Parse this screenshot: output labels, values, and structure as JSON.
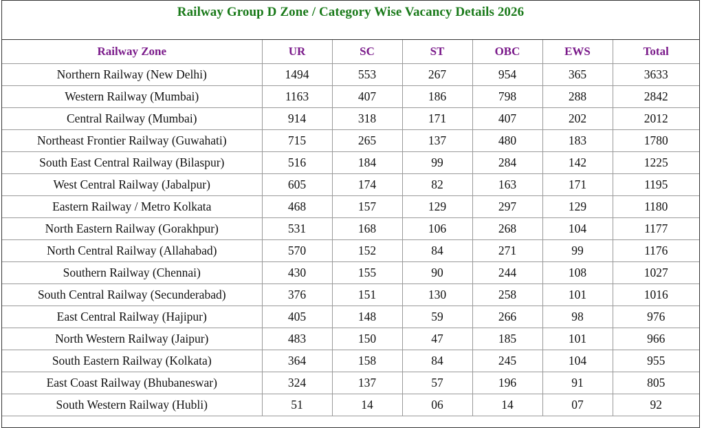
{
  "title": "Railway Group D Zone / Category Wise Vacancy Details 2026",
  "colors": {
    "title": "#1a7a1a",
    "header": "#7a1a8a"
  },
  "headers": [
    "Railway Zone",
    "UR",
    "SC",
    "ST",
    "OBC",
    "EWS",
    "Total"
  ],
  "rows": [
    [
      "Northern Railway (New Delhi)",
      "1494",
      "553",
      "267",
      "954",
      "365",
      "3633"
    ],
    [
      "Western Railway (Mumbai)",
      "1163",
      "407",
      "186",
      "798",
      "288",
      "2842"
    ],
    [
      "Central Railway (Mumbai)",
      "914",
      "318",
      "171",
      "407",
      "202",
      "2012"
    ],
    [
      "Northeast Frontier Railway (Guwahati)",
      "715",
      "265",
      "137",
      "480",
      "183",
      "1780"
    ],
    [
      "South East Central Railway (Bilaspur)",
      "516",
      "184",
      "99",
      "284",
      "142",
      "1225"
    ],
    [
      "West Central Railway (Jabalpur)",
      "605",
      "174",
      "82",
      "163",
      "171",
      "1195"
    ],
    [
      "Eastern Railway / Metro Kolkata",
      "468",
      "157",
      "129",
      "297",
      "129",
      "1180"
    ],
    [
      "North Eastern Railway (Gorakhpur)",
      "531",
      "168",
      "106",
      "268",
      "104",
      "1177"
    ],
    [
      "North Central Railway (Allahabad)",
      "570",
      "152",
      "84",
      "271",
      "99",
      "1176"
    ],
    [
      "Southern Railway (Chennai)",
      "430",
      "155",
      "90",
      "244",
      "108",
      "1027"
    ],
    [
      "South Central Railway (Secunderabad)",
      "376",
      "151",
      "130",
      "258",
      "101",
      "1016"
    ],
    [
      "East Central Railway (Hajipur)",
      "405",
      "148",
      "59",
      "266",
      "98",
      "976"
    ],
    [
      "North Western Railway (Jaipur)",
      "483",
      "150",
      "47",
      "185",
      "101",
      "966"
    ],
    [
      "South Eastern Railway (Kolkata)",
      "364",
      "158",
      "84",
      "245",
      "104",
      "955"
    ],
    [
      "East Coast Railway (Bhubaneswar)",
      "324",
      "137",
      "57",
      "196",
      "91",
      "805"
    ],
    [
      "South Western Railway (Hubli)",
      "51",
      "14",
      "06",
      "14",
      "07",
      "92"
    ]
  ]
}
